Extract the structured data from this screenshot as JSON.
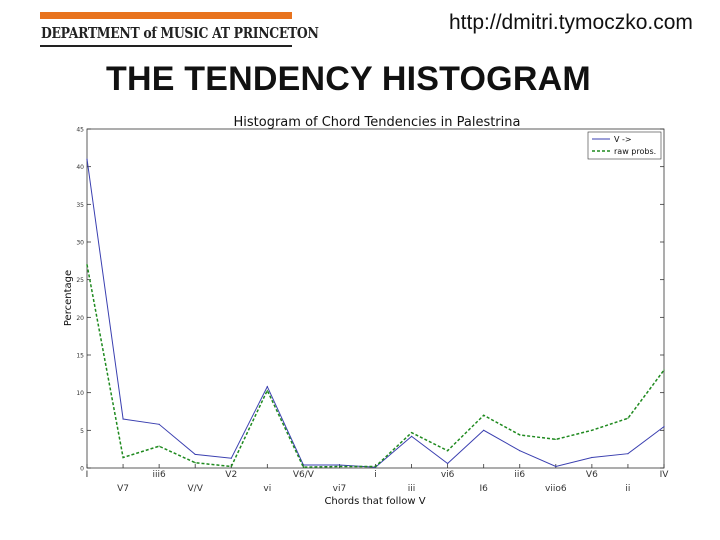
{
  "header": {
    "logo_text": "DEPARTMENT of MUSIC AT PRINCETON",
    "url": "http://dmitri.tymoczko.com",
    "slide_title": "THE TENDENCY HISTOGRAM"
  },
  "colors": {
    "header_bar": "#e8731e",
    "series_v": "#3a3fb0",
    "series_raw": "#1f8a1f"
  },
  "chart_data": {
    "type": "line",
    "title": "Histogram of Chord Tendencies in Palestrina",
    "xlabel": "Chords that follow V",
    "ylabel": "Percentage",
    "ylim": [
      0,
      45
    ],
    "yticks": [
      0,
      5,
      10,
      15,
      20,
      25,
      30,
      35,
      40,
      45
    ],
    "legend_position": "top-right",
    "categories": [
      "I",
      "V7",
      "iii6",
      "V/V",
      "V2",
      "vi",
      "V6/V",
      "vi7",
      "i",
      "iii",
      "vi6",
      "I6",
      "ii6",
      "viio6",
      "V6",
      "ii",
      "IV"
    ],
    "series": [
      {
        "name": "V ->",
        "style": "solid",
        "values": [
          41.0,
          6.5,
          5.8,
          1.8,
          1.3,
          10.8,
          0.4,
          0.4,
          0.1,
          4.2,
          0.6,
          5.0,
          2.3,
          0.2,
          1.4,
          1.9,
          5.5
        ]
      },
      {
        "name": "raw probs.",
        "style": "dashed",
        "values": [
          27.0,
          1.4,
          2.9,
          0.7,
          0.2,
          10.3,
          0.1,
          0.2,
          0.2,
          4.7,
          2.3,
          7.0,
          4.4,
          3.8,
          5.0,
          6.6,
          13.0
        ]
      }
    ]
  }
}
